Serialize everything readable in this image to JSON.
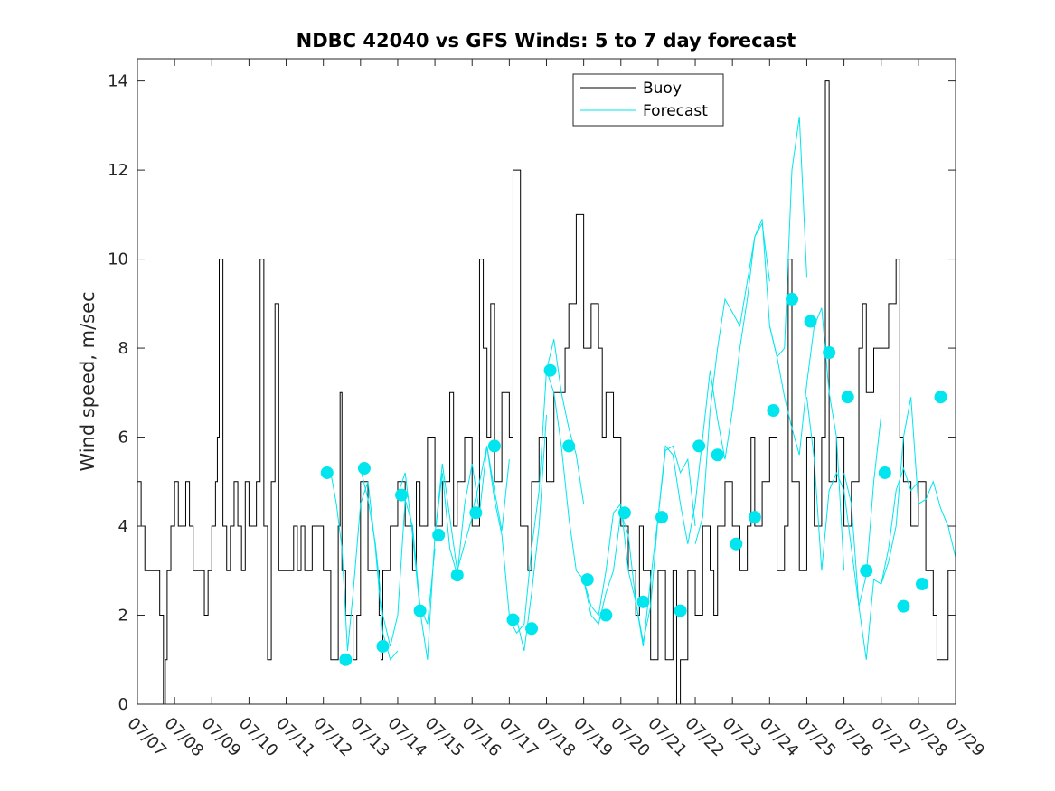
{
  "chart_data": {
    "type": "line",
    "title": "NDBC 42040 vs GFS Winds: 5 to 7 day forecast",
    "ylabel": "Wind speed, m/sec",
    "xlabel": "",
    "xlim": [
      "07/07",
      "07/29"
    ],
    "ylim": [
      0,
      14.5
    ],
    "yticks": [
      0,
      2,
      4,
      6,
      8,
      10,
      12,
      14
    ],
    "xtick_labels": [
      "07/07",
      "07/08",
      "07/09",
      "07/10",
      "07/11",
      "07/12",
      "07/13",
      "07/14",
      "07/15",
      "07/16",
      "07/17",
      "07/18",
      "07/19",
      "07/20",
      "07/21",
      "07/22",
      "07/23",
      "07/24",
      "07/25",
      "07/26",
      "07/27",
      "07/28",
      "07/29"
    ],
    "grid": false,
    "legend": {
      "position": "top-right",
      "entries": [
        "Buoy",
        "Forecast"
      ]
    },
    "colors": {
      "buoy": "#000000",
      "forecast": "#00e5ee"
    },
    "series": [
      {
        "name": "Buoy",
        "style": "step-line",
        "x": [
          0.0,
          0.1,
          0.2,
          0.3,
          0.5,
          0.6,
          0.7,
          0.75,
          0.8,
          0.9,
          1.0,
          1.1,
          1.2,
          1.3,
          1.4,
          1.5,
          1.7,
          1.8,
          1.9,
          2.0,
          2.1,
          2.15,
          2.2,
          2.3,
          2.4,
          2.5,
          2.6,
          2.7,
          2.8,
          2.9,
          3.0,
          3.2,
          3.3,
          3.4,
          3.5,
          3.6,
          3.7,
          3.8,
          4.0,
          4.2,
          4.3,
          4.4,
          4.5,
          4.6,
          4.7,
          4.8,
          5.0,
          5.2,
          5.4,
          5.45,
          5.5,
          5.6,
          5.8,
          5.9,
          6.0,
          6.1,
          6.2,
          6.3,
          6.5,
          6.55,
          6.6,
          6.7,
          6.8,
          7.0,
          7.2,
          7.4,
          7.5,
          7.6,
          7.8,
          8.0,
          8.2,
          8.4,
          8.5,
          8.6,
          8.8,
          9.0,
          9.2,
          9.3,
          9.4,
          9.5,
          9.6,
          9.8,
          10.0,
          10.1,
          10.3,
          10.4,
          10.5,
          10.6,
          10.8,
          11.0,
          11.2,
          11.4,
          11.5,
          11.6,
          11.8,
          12.0,
          12.2,
          12.4,
          12.5,
          12.6,
          12.8,
          13.0,
          13.2,
          13.4,
          13.5,
          13.6,
          13.8,
          14.0,
          14.2,
          14.4,
          14.5,
          14.6,
          14.8,
          15.0,
          15.2,
          15.4,
          15.5,
          15.6,
          15.8,
          16.0,
          16.2,
          16.4,
          16.5,
          16.6,
          16.8,
          17.0,
          17.2,
          17.4,
          17.5,
          17.6,
          17.8,
          18.0,
          18.2,
          18.4,
          18.5,
          18.6,
          18.8,
          19.0,
          19.2,
          19.4,
          19.5,
          19.6,
          19.8,
          20.0,
          20.2,
          20.4,
          20.5,
          20.6,
          20.8,
          21.0,
          21.2,
          21.4,
          21.5,
          21.6,
          21.8,
          22.0
        ],
        "y": [
          5,
          4,
          3,
          3,
          3,
          2,
          0,
          1,
          3,
          4,
          5,
          4,
          4,
          5,
          4,
          3,
          3,
          2,
          3,
          4,
          5,
          6,
          10,
          4,
          3,
          4,
          5,
          4,
          3,
          5,
          4,
          5,
          10,
          4,
          1,
          5,
          9,
          3,
          3,
          4,
          3,
          4,
          3,
          3,
          4,
          4,
          3,
          1,
          4,
          7,
          3,
          2,
          1,
          2,
          5,
          5,
          3,
          3,
          2,
          1,
          3,
          3,
          4,
          5,
          4,
          3,
          5,
          4,
          6,
          4,
          5,
          7,
          4,
          5,
          6,
          4,
          10,
          8,
          6,
          9,
          5,
          7,
          6,
          12,
          4,
          4,
          3,
          5,
          6,
          5,
          7,
          7,
          8,
          9,
          11,
          8,
          9,
          8,
          6,
          7,
          6,
          4,
          3,
          2,
          4,
          3,
          1,
          3,
          1,
          3,
          0,
          1,
          3,
          2,
          4,
          3,
          2,
          4,
          5,
          4,
          3,
          4,
          6,
          4,
          5,
          6,
          3,
          4,
          10,
          5,
          3,
          6,
          4,
          6,
          14,
          5,
          6,
          4,
          5,
          8,
          9,
          7,
          8,
          8,
          9,
          10,
          6,
          5,
          4,
          5,
          3,
          2,
          1,
          1,
          3,
          4
        ],
        "y_series_note": ""
      },
      {
        "name": "Forecast",
        "style": "thin-lines",
        "segments": [
          {
            "x": [
              5.2,
              5.35,
              5.5,
              5.65,
              5.8,
              6.0,
              6.2,
              6.4,
              6.6,
              6.8,
              7.0
            ],
            "y": [
              5.2,
              4.5,
              3.5,
              1.2,
              2.5,
              4.5,
              5.0,
              3.5,
              1.6,
              1.0,
              1.2
            ]
          },
          {
            "x": [
              6.0,
              6.2,
              6.4,
              6.6,
              6.8,
              7.0,
              7.2,
              7.4,
              7.6,
              7.8,
              8.0
            ],
            "y": [
              5.3,
              4.6,
              3.6,
              2.0,
              1.3,
              2.0,
              4.6,
              4.0,
              2.2,
              1.8,
              3.5
            ]
          },
          {
            "x": [
              7.0,
              7.2,
              7.4,
              7.6,
              7.8,
              8.0,
              8.2,
              8.4,
              8.6,
              8.8,
              9.0
            ],
            "y": [
              4.7,
              5.2,
              3.8,
              2.1,
              1.0,
              3.8,
              5.4,
              4.2,
              3.0,
              3.6,
              4.2
            ]
          },
          {
            "x": [
              8.0,
              8.2,
              8.4,
              8.6,
              8.8,
              9.0,
              9.2,
              9.4,
              9.6,
              9.8,
              10.0
            ],
            "y": [
              3.8,
              5.2,
              3.5,
              2.9,
              4.5,
              5.4,
              4.3,
              5.8,
              4.8,
              3.9,
              5.5
            ]
          },
          {
            "x": [
              9.0,
              9.2,
              9.4,
              9.6,
              9.8,
              10.0,
              10.2,
              10.4,
              10.6,
              10.8,
              11.0
            ],
            "y": [
              4.3,
              5.0,
              5.8,
              4.6,
              3.8,
              2.0,
              1.9,
              1.2,
              2.5,
              4.0,
              6.5
            ]
          },
          {
            "x": [
              10.0,
              10.2,
              10.4,
              10.6,
              10.8,
              11.0,
              11.2,
              11.4,
              11.6,
              11.8,
              12.0
            ],
            "y": [
              1.9,
              1.6,
              1.8,
              3.5,
              4.8,
              7.5,
              8.2,
              7.0,
              6.2,
              5.6,
              4.5
            ]
          },
          {
            "x": [
              11.0,
              11.2,
              11.4,
              11.6,
              11.8,
              12.0,
              12.2,
              12.4,
              12.6,
              12.8,
              13.0
            ],
            "y": [
              7.5,
              7.0,
              5.8,
              4.2,
              3.0,
              2.8,
              2.0,
              1.8,
              2.5,
              3.0,
              4.3
            ]
          },
          {
            "x": [
              12.0,
              12.2,
              12.4,
              12.6,
              12.8,
              13.0,
              13.2,
              13.4,
              13.6,
              13.8,
              14.0
            ],
            "y": [
              2.8,
              2.2,
              2.0,
              3.0,
              4.3,
              4.5,
              3.0,
              2.3,
              1.4,
              2.2,
              4.2
            ]
          },
          {
            "x": [
              13.0,
              13.2,
              13.4,
              13.6,
              13.8,
              14.0,
              14.2,
              14.4,
              14.6,
              14.8,
              15.0
            ],
            "y": [
              4.3,
              3.8,
              2.3,
              1.3,
              2.8,
              4.2,
              5.7,
              5.8,
              5.2,
              5.5,
              4.0
            ]
          },
          {
            "x": [
              14.0,
              14.2,
              14.4,
              14.6,
              14.8,
              15.0,
              15.2,
              15.4,
              15.6,
              15.8,
              16.0
            ],
            "y": [
              4.2,
              5.8,
              5.6,
              4.5,
              3.6,
              4.5,
              6.0,
              7.5,
              6.4,
              5.5,
              6.6
            ]
          },
          {
            "x": [
              15.0,
              15.2,
              15.4,
              15.6,
              15.8,
              16.0,
              16.2,
              16.4,
              16.6,
              16.8,
              17.0
            ],
            "y": [
              3.6,
              4.2,
              6.6,
              8.0,
              9.1,
              8.8,
              8.5,
              9.5,
              10.5,
              10.8,
              9.5
            ]
          },
          {
            "x": [
              16.0,
              16.2,
              16.4,
              16.6,
              16.8,
              17.0,
              17.2,
              17.4,
              17.6,
              17.8,
              18.0
            ],
            "y": [
              6.6,
              8.0,
              9.1,
              10.5,
              10.9,
              8.5,
              7.8,
              8.0,
              12.0,
              13.2,
              9.6
            ]
          },
          {
            "x": [
              17.0,
              17.2,
              17.4,
              17.6,
              17.8,
              18.0,
              18.2,
              18.4,
              18.6,
              18.8,
              19.0
            ],
            "y": [
              8.5,
              7.8,
              6.9,
              6.2,
              5.6,
              7.2,
              8.5,
              8.9,
              7.0,
              6.0,
              3.0
            ]
          },
          {
            "x": [
              18.0,
              18.2,
              18.4,
              18.6,
              18.8,
              19.0,
              19.2,
              19.4,
              19.6,
              19.8,
              20.0
            ],
            "y": [
              6.9,
              5.5,
              3.0,
              4.8,
              5.2,
              4.8,
              3.5,
              2.2,
              2.9,
              5.0,
              6.5
            ]
          },
          {
            "x": [
              19.0,
              19.2,
              19.4,
              19.6,
              19.8,
              20.0,
              20.2,
              20.4,
              20.6,
              20.8,
              21.0
            ],
            "y": [
              5.2,
              4.5,
              2.2,
              1.0,
              2.8,
              2.7,
              3.5,
              4.8,
              5.3,
              4.8,
              5.0
            ]
          },
          {
            "x": [
              20.0,
              20.2,
              20.4,
              20.6,
              20.8,
              21.0,
              21.2,
              21.4,
              21.6,
              21.8,
              22.0
            ],
            "y": [
              2.7,
              3.2,
              4.0,
              6.0,
              6.9,
              4.5,
              4.6,
              5.0,
              4.4,
              4.0,
              3.3
            ]
          }
        ],
        "markers": {
          "x": [
            5.1,
            5.6,
            6.1,
            6.6,
            7.1,
            7.6,
            8.1,
            8.6,
            9.1,
            9.6,
            10.1,
            10.6,
            11.1,
            11.6,
            12.1,
            12.6,
            13.1,
            13.6,
            14.1,
            14.6,
            15.1,
            15.6,
            16.1,
            16.6,
            17.1,
            17.6,
            18.1,
            18.6,
            19.1,
            19.6,
            20.1,
            20.6,
            21.1
          ],
          "y": [
            5.2,
            1.0,
            5.3,
            1.3,
            4.7,
            2.1,
            3.8,
            2.9,
            4.3,
            5.8,
            1.9,
            1.7,
            7.5,
            5.8,
            2.8,
            2.0,
            4.3,
            2.3,
            4.2,
            2.1,
            5.8,
            5.6,
            3.6,
            4.2,
            6.6,
            9.1,
            8.6,
            7.9,
            6.9,
            3.0,
            5.2,
            2.2,
            2.7
          ]
        }
      }
    ],
    "extra_markers": {
      "x": [
        21.6
      ],
      "y": [
        6.9
      ]
    }
  }
}
